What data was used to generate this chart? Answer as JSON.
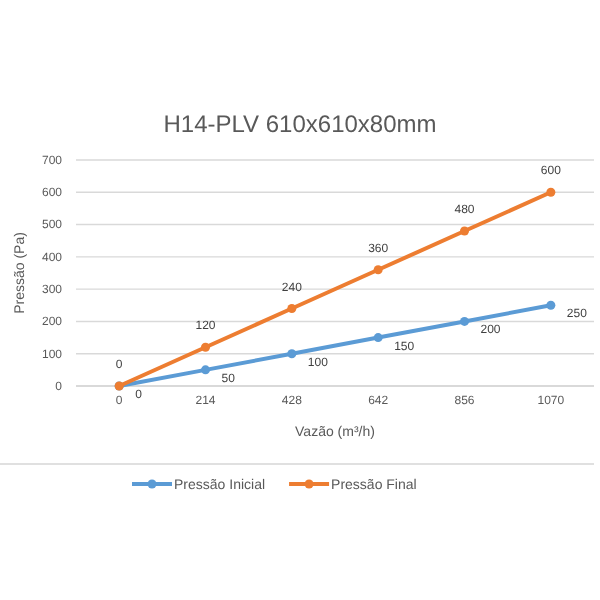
{
  "chart_data": {
    "type": "line",
    "title": "H14-PLV 610x610x80mm",
    "xlabel": "Vazão (m³/h)",
    "ylabel": "Pressão (Pa)",
    "categories": [
      "0",
      "214",
      "428",
      "642",
      "856",
      "1070"
    ],
    "series": [
      {
        "name": "Pressão Inicial",
        "color": "#5b9bd5",
        "values": [
          0,
          50,
          100,
          150,
          200,
          250
        ]
      },
      {
        "name": "Pressão Final",
        "color": "#ed7d31",
        "values": [
          0,
          120,
          240,
          360,
          480,
          600
        ]
      }
    ],
    "ylim": [
      0,
      700
    ],
    "yticks": [
      0,
      100,
      200,
      300,
      400,
      500,
      600,
      700
    ],
    "grid": "y",
    "legend": "bottom",
    "marker": "circle",
    "data_labels": true
  }
}
